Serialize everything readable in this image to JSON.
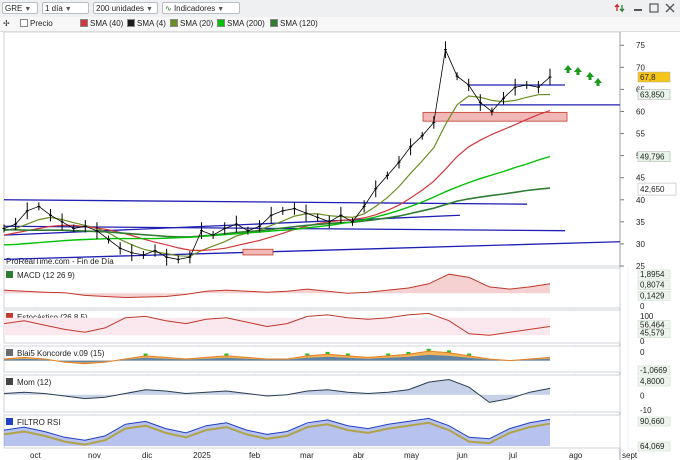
{
  "toolbar": {
    "symbol": "GRE",
    "period": "1 día",
    "units": "200 unidades",
    "indicators_label": "Indicadores"
  },
  "legend": {
    "price_label": "Precio",
    "sma40": "SMA (40)",
    "sma4": "SMA (4)",
    "sma20": "SMA (20)",
    "sma200": "SMA (200)",
    "sma120": "SMA (120)"
  },
  "colors": {
    "price": "#000000",
    "sma4": "#1a1a1a",
    "sma20": "#6b8e23",
    "sma40": "#d2373c",
    "sma120": "#2e7d32",
    "sma200": "#00c000",
    "trendline": "#1f1fb4",
    "zone": "#f2b8b8",
    "arrow": "#1a9a1a"
  },
  "chart_data": [
    {
      "type": "line",
      "title": "",
      "watermark": "ProRealTime.com - Fin de Día",
      "x_labels": [
        "oct",
        "nov",
        "dic",
        "2025",
        "feb",
        "mar",
        "abr",
        "may",
        "jun",
        "jul",
        "ago",
        "sept"
      ],
      "ylim": [
        25,
        78
      ],
      "y_ticks": [
        "25",
        "30",
        "35",
        "40",
        "45",
        "50",
        "55",
        "60",
        "65",
        "70",
        "75"
      ],
      "price_labels": [
        "67,8",
        "63,850",
        "49,796",
        "42,650"
      ],
      "series": [
        {
          "name": "Precio",
          "values": [
            33.5,
            34.5,
            37.5,
            38.5,
            36.5,
            35.0,
            33.5,
            34.0,
            33.0,
            31.0,
            29.0,
            28.0,
            27.5,
            28.5,
            27.0,
            26.5,
            27.0,
            33.0,
            32.0,
            33.5,
            34.5,
            33.0,
            34.0,
            36.5,
            37.5,
            38.0,
            37.0,
            36.0,
            35.0,
            36.5,
            35.0,
            38.5,
            42.5,
            45.5,
            48.5,
            52.0,
            54.5,
            57.5,
            74.0,
            68.0,
            66.0,
            62.0,
            60.0,
            63.0,
            65.5,
            66.0,
            65.5,
            67.8
          ]
        },
        {
          "name": "SMA (20)",
          "values": [
            33.0,
            33.5,
            34.5,
            35.5,
            36.0,
            35.5,
            34.8,
            34.2,
            33.5,
            32.5,
            31.0,
            29.8,
            28.8,
            28.2,
            27.8,
            27.3,
            27.2,
            28.5,
            29.5,
            30.5,
            31.8,
            32.5,
            33.2,
            34.2,
            35.2,
            36.3,
            36.8,
            36.8,
            36.4,
            36.2,
            36.0,
            36.8,
            38.5,
            40.5,
            43.0,
            46.0,
            48.8,
            51.8,
            57.0,
            61.5,
            63.5,
            63.2,
            62.5,
            62.2,
            62.5,
            63.2,
            63.8,
            63.85
          ]
        },
        {
          "name": "SMA (40)",
          "values": [
            32.0,
            32.5,
            33.0,
            33.5,
            34.0,
            34.2,
            34.2,
            33.9,
            33.6,
            33.2,
            32.6,
            31.9,
            31.1,
            30.4,
            29.8,
            29.1,
            28.6,
            28.5,
            28.7,
            29.0,
            29.6,
            30.2,
            30.8,
            31.6,
            32.4,
            33.3,
            34.0,
            34.6,
            35.0,
            35.3,
            35.5,
            35.9,
            36.6,
            37.6,
            38.8,
            40.4,
            42.2,
            44.2,
            46.9,
            49.8,
            52.0,
            53.5,
            54.8,
            55.9,
            57.0,
            58.2,
            59.3,
            60.2
          ]
        },
        {
          "name": "SMA (120)",
          "values": [
            33.2,
            33.2,
            33.1,
            33.1,
            33.1,
            33.1,
            33.0,
            32.9,
            32.8,
            32.7,
            32.5,
            32.3,
            32.1,
            31.9,
            31.7,
            31.6,
            31.6,
            31.8,
            32.0,
            32.3,
            32.6,
            32.8,
            33.0,
            33.3,
            33.6,
            33.9,
            34.2,
            34.4,
            34.6,
            34.8,
            34.9,
            35.2,
            35.5,
            35.9,
            36.3,
            36.9,
            37.5,
            38.1,
            38.9,
            39.7,
            40.2,
            40.6,
            41.0,
            41.3,
            41.7,
            42.1,
            42.4,
            42.65
          ]
        },
        {
          "name": "SMA (200)",
          "values": [
            29.8,
            29.9,
            30.1,
            30.3,
            30.5,
            30.7,
            30.9,
            31.0,
            31.1,
            31.2,
            31.2,
            31.2,
            31.2,
            31.2,
            31.3,
            31.4,
            31.5,
            31.7,
            31.9,
            32.1,
            32.3,
            32.5,
            32.7,
            32.9,
            33.1,
            33.3,
            33.6,
            33.9,
            34.2,
            34.6,
            35.0,
            35.5,
            36.1,
            36.8,
            37.6,
            38.5,
            39.5,
            40.6,
            41.8,
            42.9,
            43.9,
            44.8,
            45.6,
            46.4,
            47.3,
            48.1,
            49.0,
            49.8
          ]
        }
      ]
    },
    {
      "type": "line",
      "title": "MACD (12 26 9)",
      "price_labels": [
        "1,8954",
        "0,8074",
        "0,1429"
      ],
      "series": [
        {
          "name": "MACD",
          "values": [
            0.3,
            0.2,
            0.1,
            0.05,
            -0.2,
            -0.3,
            -0.4,
            -0.35,
            -0.3,
            -0.1,
            0.2,
            0.3,
            0.2,
            0.1,
            0.2,
            0.4,
            0.2,
            0.0,
            0.1,
            0.3,
            0.5,
            0.9,
            1.8,
            1.5,
            0.6,
            0.4,
            0.6,
            0.9
          ]
        }
      ]
    },
    {
      "type": "line",
      "title": "Estocástico (26.8 5)",
      "price_labels": [
        "56,464",
        "45,579"
      ],
      "series": [
        {
          "name": "%K",
          "values": [
            60,
            70,
            55,
            40,
            30,
            45,
            80,
            85,
            70,
            60,
            75,
            80,
            65,
            50,
            60,
            85,
            90,
            80,
            75,
            80,
            90,
            95,
            70,
            25,
            20,
            30,
            40,
            50
          ]
        }
      ]
    },
    {
      "type": "area",
      "title": "Blai5 Koncorde v.09 (15)",
      "price_labels": [
        "-1,0669"
      ],
      "series": [
        {
          "name": "Koncorde",
          "values": [
            1,
            2,
            1,
            -1,
            -2,
            -1,
            1,
            3,
            2,
            1,
            2,
            3,
            2,
            1,
            1,
            3,
            4,
            3,
            2,
            3,
            4,
            6,
            5,
            3,
            1,
            0,
            1,
            2
          ]
        }
      ]
    },
    {
      "type": "line",
      "title": "Mom (12)",
      "price_labels": [
        "4,8000"
      ],
      "series": [
        {
          "name": "Mom",
          "values": [
            1,
            2,
            1,
            -1,
            -3,
            -2,
            1,
            4,
            3,
            1,
            2,
            3,
            1,
            -1,
            0,
            3,
            4,
            2,
            1,
            2,
            4,
            10,
            12,
            6,
            -6,
            -3,
            2,
            5
          ]
        }
      ]
    },
    {
      "type": "line",
      "title": "FILTRO RSI",
      "price_labels": [
        "90,660",
        "64,069"
      ],
      "series": [
        {
          "name": "RSI",
          "values": [
            55,
            65,
            50,
            30,
            20,
            35,
            75,
            85,
            60,
            45,
            70,
            80,
            55,
            40,
            50,
            80,
            90,
            70,
            60,
            75,
            85,
            95,
            70,
            30,
            25,
            60,
            80,
            92
          ]
        }
      ]
    }
  ]
}
